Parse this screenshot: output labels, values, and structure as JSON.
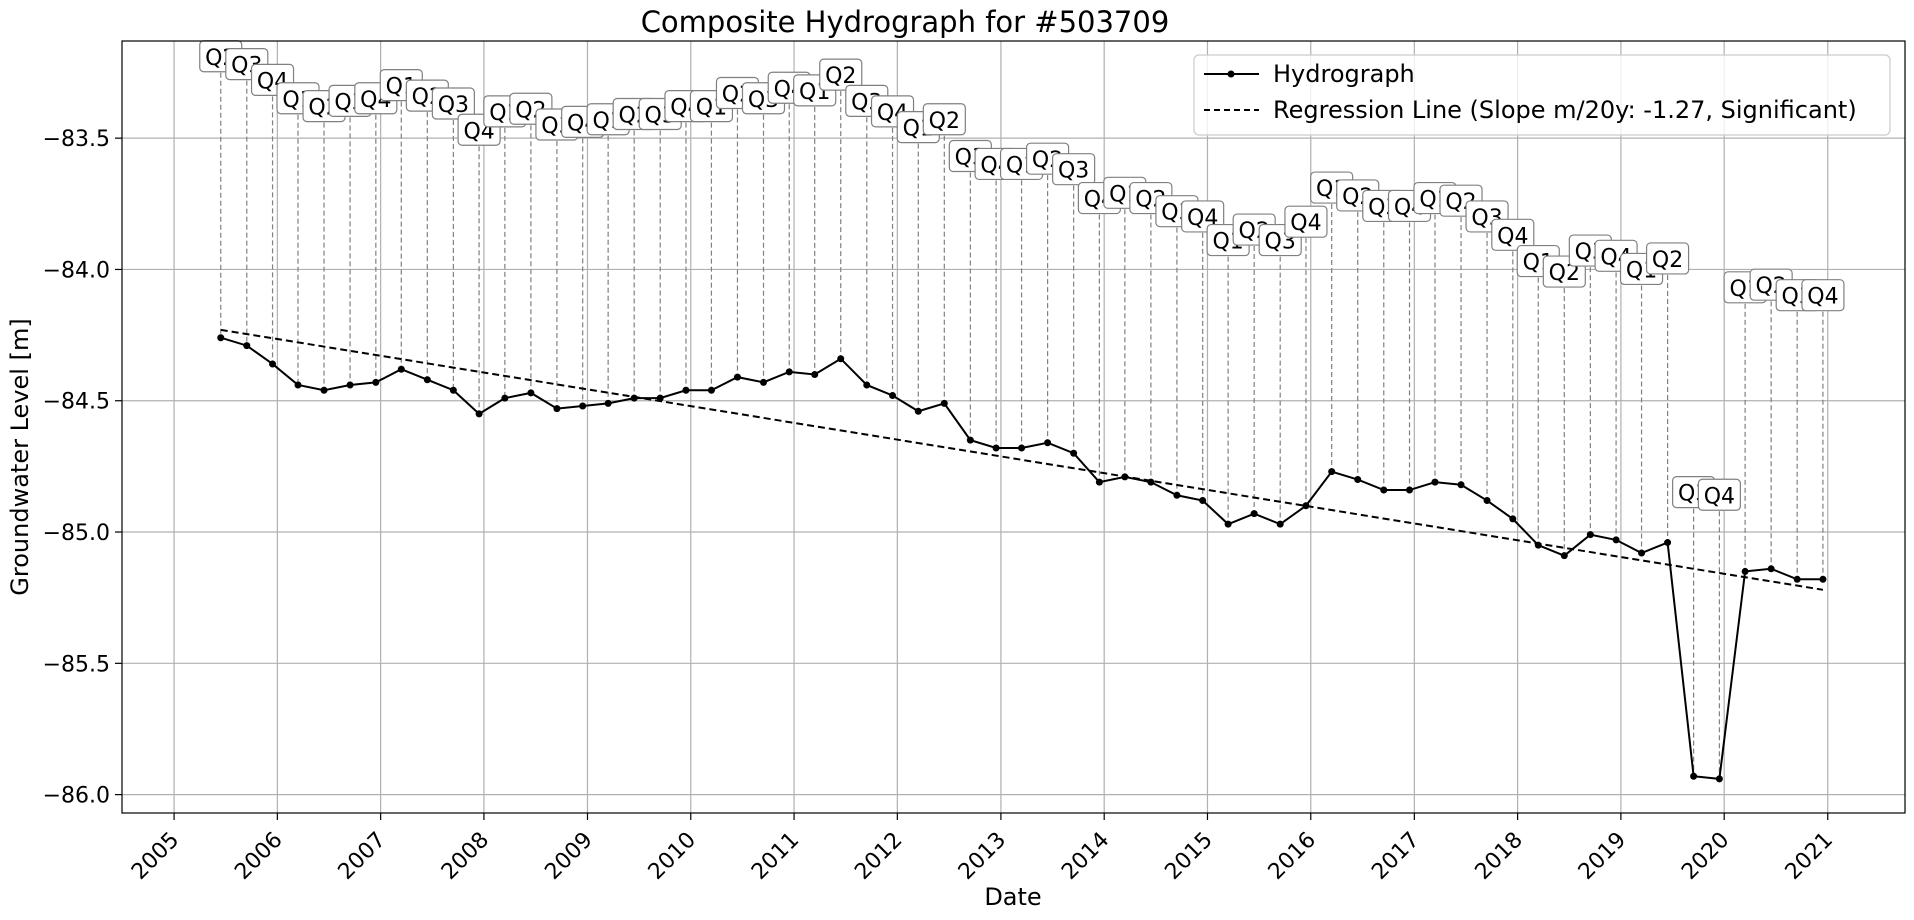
{
  "chart_data": {
    "type": "line",
    "title": "Composite Hydrograph for  #503709",
    "xlabel": "Date",
    "ylabel": "Groundwater Level [m]",
    "xlim": [
      "2004-07-01",
      "2021-10-01"
    ],
    "ylim": [
      -86.07,
      -83.13
    ],
    "x_ticks": [
      "2005",
      "2006",
      "2007",
      "2008",
      "2009",
      "2010",
      "2011",
      "2012",
      "2013",
      "2014",
      "2015",
      "2016",
      "2017",
      "2018",
      "2019",
      "2020",
      "2021"
    ],
    "y_ticks": [
      "−83.5",
      "−84.0",
      "−84.5",
      "−85.0",
      "−85.5",
      "−86.0"
    ],
    "grid": true,
    "legend_position": "top-right",
    "series": [
      {
        "name": "Hydrograph",
        "style": "solid line with dot markers",
        "color": "#000000",
        "dates": [
          "2005-06-15",
          "2005-09-15",
          "2005-12-15",
          "2006-03-15",
          "2006-06-15",
          "2006-09-15",
          "2006-12-15",
          "2007-03-15",
          "2007-06-15",
          "2007-09-15",
          "2007-12-15",
          "2008-03-15",
          "2008-06-15",
          "2008-09-15",
          "2008-12-15",
          "2009-03-15",
          "2009-06-15",
          "2009-09-15",
          "2009-12-15",
          "2010-03-15",
          "2010-06-15",
          "2010-09-15",
          "2010-12-15",
          "2011-03-15",
          "2011-06-15",
          "2011-09-15",
          "2011-12-15",
          "2012-03-15",
          "2012-06-15",
          "2012-09-15",
          "2012-12-15",
          "2013-03-15",
          "2013-06-15",
          "2013-09-15",
          "2013-12-15",
          "2014-03-15",
          "2014-06-15",
          "2014-09-15",
          "2014-12-15",
          "2015-03-15",
          "2015-06-15",
          "2015-09-15",
          "2015-12-15",
          "2016-03-15",
          "2016-06-15",
          "2016-09-15",
          "2016-12-15",
          "2017-03-15",
          "2017-06-15",
          "2017-09-15",
          "2017-12-15",
          "2018-03-15",
          "2018-06-15",
          "2018-09-15",
          "2018-12-15",
          "2019-03-15",
          "2019-06-15",
          "2019-09-15",
          "2019-12-15",
          "2020-03-15",
          "2020-06-15",
          "2020-09-15",
          "2020-12-15"
        ],
        "values": [
          -84.26,
          -84.29,
          -84.36,
          -84.44,
          -84.46,
          -84.44,
          -84.43,
          -84.38,
          -84.42,
          -84.46,
          -84.55,
          -84.49,
          -84.47,
          -84.53,
          -84.52,
          -84.51,
          -84.49,
          -84.49,
          -84.46,
          -84.46,
          -84.41,
          -84.43,
          -84.39,
          -84.4,
          -84.34,
          -84.44,
          -84.48,
          -84.54,
          -84.51,
          -84.65,
          -84.68,
          -84.68,
          -84.66,
          -84.7,
          -84.81,
          -84.79,
          -84.81,
          -84.86,
          -84.88,
          -84.97,
          -84.93,
          -84.97,
          -84.9,
          -84.77,
          -84.8,
          -84.84,
          -84.84,
          -84.81,
          -84.82,
          -84.88,
          -84.95,
          -85.05,
          -85.09,
          -85.01,
          -85.03,
          -85.08,
          -85.04,
          -85.93,
          -85.94,
          -85.15,
          -85.14,
          -85.18,
          -85.18
        ]
      },
      {
        "name": "Regression Line (Slope m/20y: -1.27, Significant)",
        "style": "dashed line",
        "color": "#000000",
        "dates": [
          "2005-06-15",
          "2020-12-15"
        ],
        "values": [
          -84.23,
          -85.22
        ]
      }
    ],
    "quarter_labels": {
      "style": "grey dashed drop lines to boxed labels",
      "box_y_values": [
        -83.19,
        -83.22,
        -83.28,
        -83.35,
        -83.38,
        -83.36,
        -83.35,
        -83.3,
        -83.34,
        -83.37,
        -83.47,
        -83.4,
        -83.39,
        -83.45,
        -83.44,
        -83.43,
        -83.41,
        -83.41,
        -83.38,
        -83.38,
        -83.33,
        -83.35,
        -83.31,
        -83.32,
        -83.26,
        -83.36,
        -83.4,
        -83.46,
        -83.43,
        -83.57,
        -83.6,
        -83.6,
        -83.58,
        -83.62,
        -83.73,
        -83.71,
        -83.73,
        -83.78,
        -83.8,
        -83.89,
        -83.85,
        -83.89,
        -83.82,
        -83.69,
        -83.72,
        -83.76,
        -83.76,
        -83.73,
        -83.74,
        -83.8,
        -83.87,
        -83.97,
        -84.01,
        -83.93,
        -83.95,
        -84.0,
        -83.96,
        -84.85,
        -84.86,
        -84.07,
        -84.06,
        -84.1,
        -84.1
      ],
      "labels": [
        "Q2",
        "Q3",
        "Q4",
        "Q1",
        "Q2",
        "Q3",
        "Q4",
        "Q1",
        "Q2",
        "Q3",
        "Q4",
        "Q1",
        "Q2",
        "Q3",
        "Q4",
        "Q1",
        "Q2",
        "Q3",
        "Q4",
        "Q1",
        "Q2",
        "Q3",
        "Q4",
        "Q1",
        "Q2",
        "Q3",
        "Q4",
        "Q1",
        "Q2",
        "Q3",
        "Q4",
        "Q1",
        "Q2",
        "Q3",
        "Q4",
        "Q1",
        "Q2",
        "Q3",
        "Q4",
        "Q1",
        "Q2",
        "Q3",
        "Q4",
        "Q1",
        "Q2",
        "Q3",
        "Q4",
        "Q1",
        "Q2",
        "Q3",
        "Q4",
        "Q1",
        "Q2",
        "Q3",
        "Q4",
        "Q1",
        "Q2",
        "Q3",
        "Q4",
        "Q1",
        "Q2",
        "Q3",
        "Q4"
      ]
    }
  }
}
